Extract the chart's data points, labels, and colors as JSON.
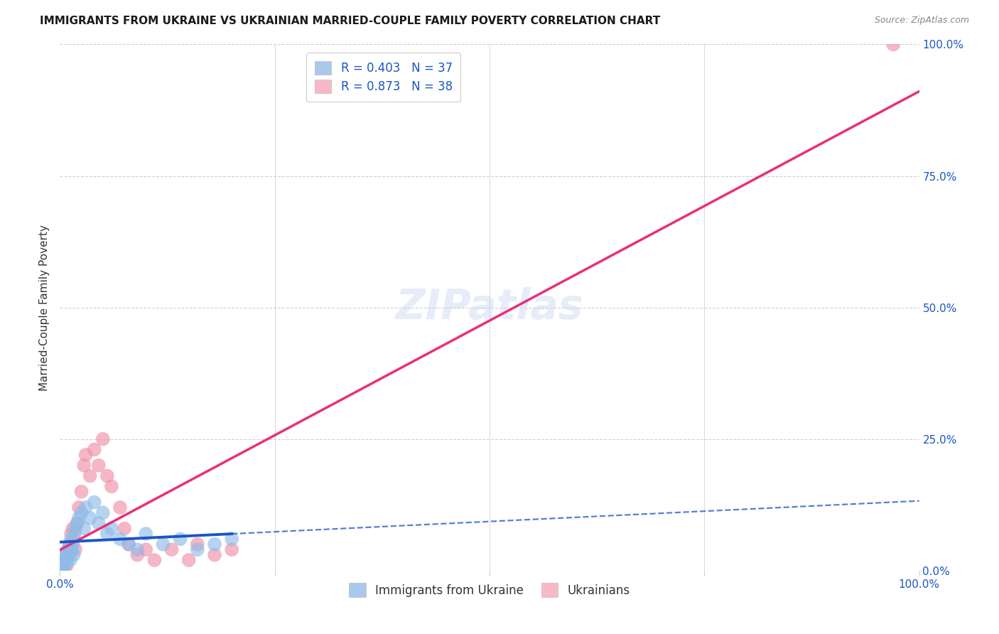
{
  "title": "IMMIGRANTS FROM UKRAINE VS UKRAINIAN MARRIED-COUPLE FAMILY POVERTY CORRELATION CHART",
  "source": "Source: ZipAtlas.com",
  "ylabel": "Married-Couple Family Poverty",
  "ytick_labels": [
    "100.0%",
    "75.0%",
    "50.0%",
    "25.0%",
    "0.0%"
  ],
  "ytick_values": [
    100,
    75,
    50,
    25,
    0
  ],
  "xtick_labels_edge": [
    "0.0%",
    "100.0%"
  ],
  "xtick_values_edge": [
    0,
    100
  ],
  "xtick_minor_values": [
    25,
    50,
    75
  ],
  "legend_series": [
    {
      "label": "R = 0.403   N = 37",
      "color": "#aac8ee"
    },
    {
      "label": "R = 0.873   N = 38",
      "color": "#f9b8c8"
    }
  ],
  "bottom_legend": [
    {
      "label": "Immigrants from Ukraine",
      "color": "#aac8ee"
    },
    {
      "label": "Ukrainians",
      "color": "#f9b8c8"
    }
  ],
  "blue_scatter_x": [
    0.2,
    0.3,
    0.4,
    0.5,
    0.6,
    0.7,
    0.8,
    0.9,
    1.0,
    1.1,
    1.2,
    1.3,
    1.4,
    1.5,
    1.6,
    1.7,
    1.8,
    2.0,
    2.2,
    2.5,
    2.8,
    3.0,
    3.5,
    4.0,
    4.5,
    5.0,
    5.5,
    6.0,
    7.0,
    8.0,
    9.0,
    10.0,
    12.0,
    14.0,
    16.0,
    18.0,
    20.0
  ],
  "blue_scatter_y": [
    0.5,
    1.0,
    1.5,
    2.0,
    1.0,
    3.0,
    2.0,
    4.0,
    3.0,
    5.0,
    2.0,
    6.0,
    4.0,
    5.0,
    3.0,
    7.0,
    8.0,
    9.0,
    10.0,
    11.0,
    8.0,
    12.0,
    10.0,
    13.0,
    9.0,
    11.0,
    7.0,
    8.0,
    6.0,
    5.0,
    4.0,
    7.0,
    5.0,
    6.0,
    4.0,
    5.0,
    6.0
  ],
  "pink_scatter_x": [
    0.2,
    0.3,
    0.4,
    0.5,
    0.6,
    0.7,
    0.8,
    0.9,
    1.0,
    1.1,
    1.2,
    1.3,
    1.5,
    1.6,
    1.8,
    2.0,
    2.2,
    2.5,
    2.8,
    3.0,
    3.5,
    4.0,
    4.5,
    5.0,
    5.5,
    6.0,
    7.0,
    7.5,
    8.0,
    9.0,
    10.0,
    11.0,
    13.0,
    15.0,
    16.0,
    18.0,
    20.0,
    97.0
  ],
  "pink_scatter_y": [
    0.3,
    0.5,
    1.0,
    1.5,
    2.0,
    3.0,
    1.0,
    2.5,
    4.0,
    3.5,
    5.0,
    7.0,
    8.0,
    6.0,
    4.0,
    9.0,
    12.0,
    15.0,
    20.0,
    22.0,
    18.0,
    23.0,
    20.0,
    25.0,
    18.0,
    16.0,
    12.0,
    8.0,
    5.0,
    3.0,
    4.0,
    2.0,
    4.0,
    2.0,
    5.0,
    3.0,
    4.0,
    100.0
  ],
  "blue_line_color": "#1a56c4",
  "pink_line_color": "#e8307a",
  "blue_scatter_color": "#90bce8",
  "pink_scatter_color": "#f090a8",
  "watermark": "ZIPatlas",
  "bg_color": "#ffffff",
  "grid_color": "#d0d0d0",
  "axis_color": "#cccccc"
}
